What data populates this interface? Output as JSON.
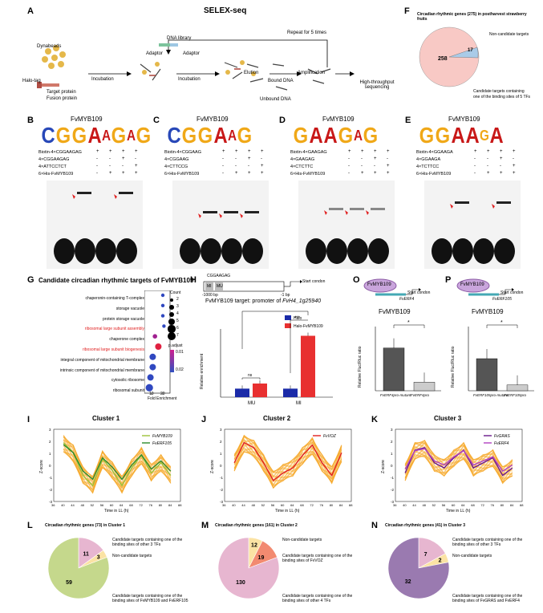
{
  "panel_letters": [
    "A",
    "B",
    "C",
    "D",
    "E",
    "F",
    "G",
    "H",
    "I",
    "J",
    "K",
    "L",
    "M",
    "N",
    "O",
    "P"
  ],
  "panelA": {
    "title": "SELEX-seq",
    "labels": {
      "dynabeads": "Dynabeads",
      "halotag": "Halo-tag",
      "target": "Target protein",
      "fusion": "Fusion protein",
      "incubation1": "Incubation",
      "incubation2": "Incubation",
      "dna_library": "DNA library",
      "adaptor1": "Adaptor",
      "adaptor2": "Adaptor",
      "repeat": "Repeat for 5 times",
      "elution": "Elution",
      "bound": "Bound DNA",
      "unbound": "Unbound DNA",
      "amplification": "Amplification",
      "hts1": "High-throughput",
      "hts2": "sequencing"
    }
  },
  "panelF": {
    "title": "Circadian rhythmic genes (275) in postharvest strawberry fruits",
    "noncandidate": "Non-candidate targets",
    "candidate1": "Candidate targets containing",
    "candidate2": "one of the binding sites of 5 TFs",
    "v1": "17",
    "v2": "258"
  },
  "emsa": [
    {
      "title": "FvMYB109",
      "logo": "CGGAAGAG",
      "rows": [
        "Biotin-4×CGGAAGAG",
        "4×CGGAAGAG",
        "4×ATTCCTCT",
        "6×His-FvMYB109"
      ],
      "signs": [
        [
          "+",
          "+",
          "+",
          "+"
        ],
        [
          "-",
          "-",
          "+",
          "-"
        ],
        [
          "-",
          "-",
          "-",
          "+"
        ],
        [
          "-",
          "+",
          "+",
          "+"
        ]
      ]
    },
    {
      "title": "FvMYB109",
      "logo": "CGGAAG",
      "rows": [
        "Biotin-4×CGGAAG",
        "4×CGGAAG",
        "4×CTTCCG",
        "6×His-FvMYB109"
      ],
      "signs": [
        [
          "+",
          "+",
          "+",
          "+"
        ],
        [
          "-",
          "-",
          "+",
          "-"
        ],
        [
          "-",
          "-",
          "-",
          "+"
        ],
        [
          "-",
          "+",
          "+",
          "+"
        ]
      ]
    },
    {
      "title": "FvMYB109",
      "logo": "GAAGAG",
      "rows": [
        "Biotin-4×GAAGAG",
        "4×GAAGAG",
        "4×CTCTTC",
        "6×His-FvMYB109"
      ],
      "signs": [
        [
          "+",
          "+",
          "+",
          "+"
        ],
        [
          "-",
          "-",
          "+",
          "-"
        ],
        [
          "-",
          "-",
          "-",
          "+"
        ],
        [
          "-",
          "+",
          "+",
          "+"
        ]
      ]
    },
    {
      "title": "FvMYB109",
      "logo": "GGAAGA",
      "rows": [
        "Biotin-4×GGAAGA",
        "4×GGAAGA",
        "4×TCTTCC",
        "6×His-FvMYB109"
      ],
      "signs": [
        [
          "+",
          "+",
          "+",
          "+"
        ],
        [
          "-",
          "-",
          "+",
          "-"
        ],
        [
          "-",
          "-",
          "-",
          "+"
        ],
        [
          "-",
          "+",
          "+",
          "+"
        ]
      ]
    }
  ],
  "panelG": {
    "title": "Candidate circadian rhythmic targets of FvMYB109",
    "xlabel": "Fold Enrichment",
    "terms": [
      "chaperonin-containing T-complex",
      "storage vacuole",
      "protein storage vacuole",
      "ribosomal large subunit assembly",
      "chaperone complex",
      "ribosomal large subunit biogenesis",
      "integral component of mitochondrial membrane",
      "intrinsic component of mitochondrial membrane",
      "cytosolic ribosome",
      "ribosomal subunit"
    ],
    "highlight": [
      3,
      5
    ],
    "count_label": "Count",
    "count_values": [
      "2",
      "3",
      "4",
      "5",
      "6",
      "7"
    ],
    "padj_label": "p.adjust",
    "padj_values": [
      "0.01",
      "0.02"
    ],
    "xticks": [
      "10",
      "20"
    ]
  },
  "panelH": {
    "motif": "CGGAAGAG",
    "mi_label": "MI",
    "mu_label": "MU",
    "start1": "-1000 bp",
    "start2": "-1 bp",
    "startcodon": "Start condon",
    "target_title": "FvMYB109 target: promoter of ",
    "target_gene": "FvH4_1g25940",
    "ylabel": "Relative enrichment",
    "legend": [
      "Halo",
      "Halo-FvMYB109"
    ],
    "sig": [
      "**",
      "***",
      "ns"
    ]
  },
  "panelO": {
    "protein": "FvMYB109",
    "startcodon": "Start condon",
    "gene": "FvERF4",
    "chart_title": "FvMYB109",
    "ylabel": "Relative Fluc/Rluc ratio",
    "sig": "*"
  },
  "panelP": {
    "protein": "FvMYB109",
    "startcodon": "Start condon",
    "gene": "FvERF105",
    "chart_title": "FvMYB109",
    "ylabel": "Relative Fluc/Rluc ratio",
    "sig": "*"
  },
  "clusters": [
    {
      "title": "Cluster 1",
      "legend": [
        "FvMYB109",
        "FvERF105"
      ],
      "xlabel": "Time in LL (h)",
      "ylabel": "Z-score"
    },
    {
      "title": "Cluster 2",
      "legend": [
        "FvVOZ"
      ],
      "xlabel": "Time in LL (h)",
      "ylabel": "Z-score"
    },
    {
      "title": "Cluster 3",
      "legend": [
        "FvGRAS",
        "FvERF4"
      ],
      "xlabel": "Time in LL (h)",
      "ylabel": "Z-score"
    }
  ],
  "pies": [
    {
      "title": "Circadian rhythmic genes (73) in Cluster 1",
      "labels": [
        "Candidate targets containing one of the binding sites of other 3 TFs",
        "Non-candidate targets",
        "Candidate targets containing one of the binding sites of FvMYB109 and FvERF105"
      ],
      "values": [
        "11",
        "3",
        "59"
      ]
    },
    {
      "title": "Circadian rhythmic genes (161) in Cluster 2",
      "labels": [
        "Non-candidate targets",
        "Candidate targets containing one of the binding sites of FvVOZ",
        "Candidate targets containing one of the binding sites of other 4 TFs"
      ],
      "values": [
        "12",
        "19",
        "130"
      ]
    },
    {
      "title": "Circadian rhythmic genes (41) in Cluster 3",
      "labels": [
        "Candidate targets containing one of the binding sites of other 3 TFs",
        "Non-candidate targets",
        "Candidate targets containing one of the binding sites of FvGRAS and FvERF4"
      ],
      "values": [
        "7",
        "2",
        "32"
      ]
    }
  ],
  "chart_data": [
    {
      "type": "bar",
      "title": "",
      "categories": [
        "MU",
        "MI"
      ],
      "ylabel": "Relative enrichment",
      "series": [
        {
          "name": "Halo",
          "values": [
            1.0,
            1.0
          ]
        },
        {
          "name": "Halo-FvMYB109",
          "values": [
            1.6,
            7.2
          ]
        }
      ]
    },
    {
      "type": "bar",
      "title": "FvMYB109",
      "categories": [
        "FvERF4pro-mutant",
        "FvERF4pro"
      ],
      "ylabel": "Relative Fluc/Rluc ratio",
      "ylim": [
        0,
        1.5
      ],
      "series": [
        {
          "name": "",
          "values": [
            1.0,
            0.2
          ]
        }
      ]
    },
    {
      "type": "bar",
      "title": "FvMYB109",
      "categories": [
        "FvERF105pro-mutant",
        "FvERF105pro"
      ],
      "ylabel": "Relative Fluc/Rluc ratio",
      "ylim": [
        0,
        2.0
      ],
      "series": [
        {
          "name": "",
          "values": [
            1.0,
            0.18
          ]
        }
      ]
    },
    {
      "type": "pie",
      "title": "Circadian rhythmic genes (275) in postharvest strawberry fruits",
      "values": [
        17,
        258
      ]
    },
    {
      "type": "pie",
      "title": "Circadian rhythmic genes (73) in Cluster 1",
      "values": [
        11,
        3,
        59
      ]
    },
    {
      "type": "pie",
      "title": "Circadian rhythmic genes (161) in Cluster 2",
      "values": [
        12,
        19,
        130
      ]
    },
    {
      "type": "pie",
      "title": "Circadian rhythmic genes (41) in Cluster 3",
      "values": [
        7,
        2,
        32
      ]
    }
  ]
}
